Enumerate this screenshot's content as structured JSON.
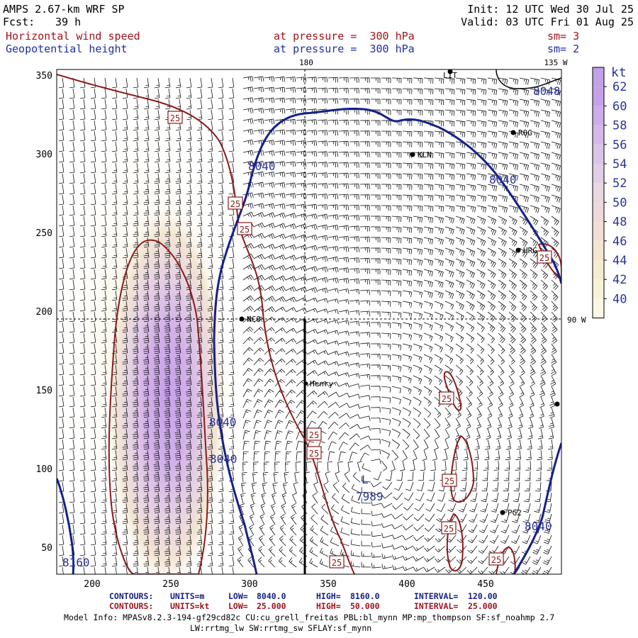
{
  "header": {
    "model": "AMPS 2.67-km WRF SP",
    "fcst_label": "Fcst:",
    "fcst_value": "39 h",
    "init": "Init: 12 UTC Wed 30 Jul 25",
    "valid": "Valid: 03 UTC Fri 01 Aug 25",
    "field1": "Horizontal wind speed",
    "field2": "Geopotential height",
    "press1": "at pressure =  300 hPa",
    "press2": "at pressure =  300 hPa",
    "sm1": "sm= 3",
    "sm2": "sm= 2"
  },
  "map": {
    "meridian_label": "180",
    "meridian135_label": "135 W",
    "meridian90_label": "90 W",
    "x_ticks": [
      "200",
      "250",
      "300",
      "350",
      "400",
      "450"
    ],
    "y_ticks": [
      "350",
      "300",
      "250",
      "200",
      "150",
      "100",
      "50"
    ],
    "stations": [
      "LIT",
      "ROG",
      "KLN",
      "HRG",
      "NCO",
      "Henry",
      "PG2"
    ],
    "height_labels": [
      "8040",
      "8040",
      "8048",
      "8040",
      "8040",
      "8040",
      "8160"
    ],
    "low_marker": "L",
    "low_value": "7989",
    "speed_label": "25"
  },
  "colorbar": {
    "unit": "kt",
    "levels": [
      "62",
      "60",
      "58",
      "56",
      "54",
      "52",
      "50",
      "48",
      "46",
      "44",
      "42",
      "40"
    ],
    "colors": [
      "#c6a0ea",
      "#cdacea",
      "#d5b7e9",
      "#dcc3e8",
      "#e2cde6",
      "#e8d6e3",
      "#edd9db",
      "#f1dfd6",
      "#f4e6d1",
      "#f5edcf",
      "#f7f3d6",
      "#faf7e2"
    ]
  },
  "footer": {
    "row1": [
      "CONTOURS:",
      "UNITS=m",
      "LOW=",
      "8040.0",
      "HIGH=",
      "8160.0",
      "INTERVAL=",
      "120.00"
    ],
    "row2": [
      "CONTOURS:",
      "UNITS=kt",
      "LOW=",
      "25.000",
      "HIGH=",
      "50.000",
      "INTERVAL=",
      "25.000"
    ],
    "model_info": "Model Info: MPASv8.2.3-194-gf29cd82c CU:cu_grell_freitas PBL:bl_mynn MP:mp_thompson SF:sf_noahmp 2.7",
    "model_info2": "LW:rrtmg_lw SW:rrtmg_sw SFLAY:sf_mynn"
  }
}
